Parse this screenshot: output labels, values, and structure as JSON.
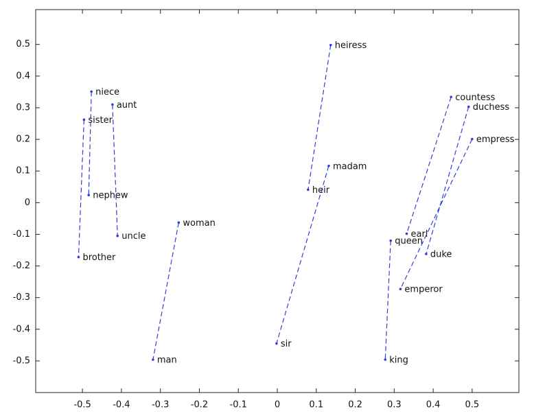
{
  "chart_data": {
    "type": "scatter",
    "xlim": [
      -0.62,
      0.62
    ],
    "ylim": [
      -0.6,
      0.61
    ],
    "xticks": [
      -0.5,
      -0.4,
      -0.3,
      -0.2,
      -0.1,
      0,
      0.1,
      0.2,
      0.3,
      0.4,
      0.5
    ],
    "yticks": [
      -0.5,
      -0.4,
      -0.3,
      -0.2,
      -0.1,
      0,
      0.1,
      0.2,
      0.3,
      0.4,
      0.5
    ],
    "series": [
      {
        "color": "#2f3fd8",
        "labels": [
          "niece",
          "nephew"
        ],
        "x": [
          -0.477,
          -0.484
        ],
        "values": [
          0.351,
          0.024
        ]
      },
      {
        "color": "#2f3fd8",
        "labels": [
          "aunt",
          "uncle"
        ],
        "x": [
          -0.423,
          -0.41
        ],
        "values": [
          0.31,
          -0.105
        ]
      },
      {
        "color": "#2f3fd8",
        "labels": [
          "sister",
          "brother"
        ],
        "x": [
          -0.496,
          -0.51
        ],
        "values": [
          0.262,
          -0.172
        ]
      },
      {
        "color": "#2f3fd8",
        "labels": [
          "woman",
          "man"
        ],
        "x": [
          -0.253,
          -0.319
        ],
        "values": [
          -0.063,
          -0.496
        ]
      },
      {
        "color": "#2f3fd8",
        "labels": [
          "heiress",
          "heir"
        ],
        "x": [
          0.137,
          0.079
        ],
        "values": [
          0.498,
          0.041
        ]
      },
      {
        "color": "#2f3fd8",
        "labels": [
          "madam",
          "sir"
        ],
        "x": [
          0.132,
          -0.002
        ],
        "values": [
          0.116,
          -0.445
        ]
      },
      {
        "color": "#2f3fd8",
        "labels": [
          "countess",
          "earl"
        ],
        "x": [
          0.446,
          0.332
        ],
        "values": [
          0.334,
          -0.098
        ]
      },
      {
        "color": "#2f3fd8",
        "labels": [
          "duchess",
          "duke"
        ],
        "x": [
          0.491,
          0.382
        ],
        "values": [
          0.303,
          -0.162
        ]
      },
      {
        "color": "#2f3fd8",
        "labels": [
          "empress",
          "emperor"
        ],
        "x": [
          0.5,
          0.316
        ],
        "values": [
          0.201,
          -0.273
        ]
      },
      {
        "color": "#2f3fd8",
        "labels": [
          "queen",
          "king"
        ],
        "x": [
          0.291,
          0.277
        ],
        "values": [
          -0.12,
          -0.496
        ]
      }
    ]
  }
}
